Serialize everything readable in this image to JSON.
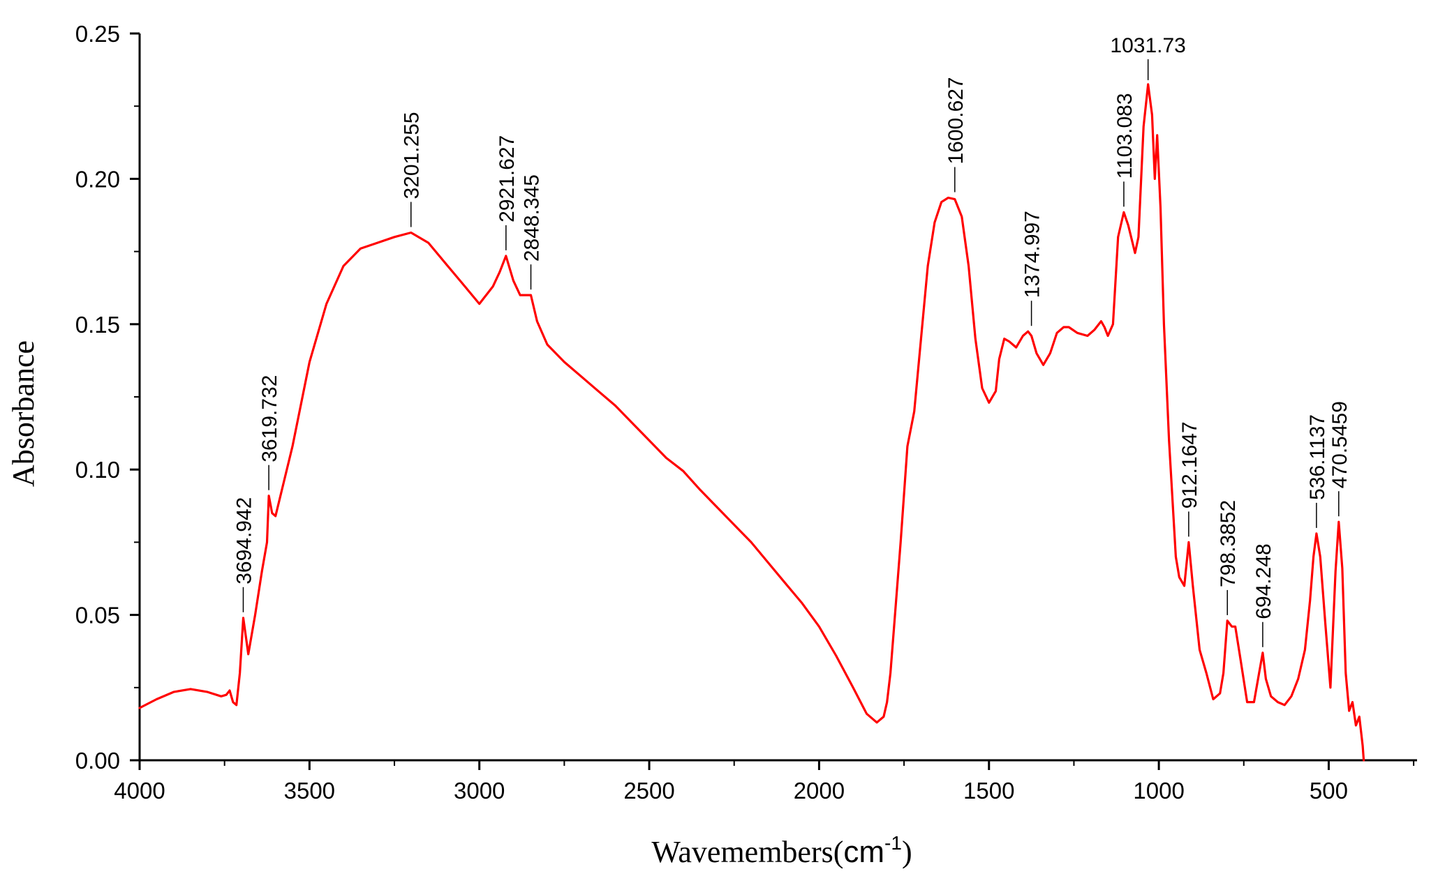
{
  "chart_data": {
    "type": "line",
    "title": "",
    "xlabel": "Wavemembers(",
    "xlabel_unit": "cm",
    "xlabel_unit_exp": "-1",
    "xlabel_close": ")",
    "ylabel": "Absorbance",
    "xlim": [
      4000,
      240
    ],
    "ylim": [
      0.0,
      0.25
    ],
    "x_ticks": [
      4000,
      3500,
      3000,
      2500,
      2000,
      1500,
      1000,
      500
    ],
    "x_tick_labels": [
      "4000",
      "3500",
      "3000",
      "2500",
      "2000",
      "1500",
      "1000",
      "500"
    ],
    "y_ticks": [
      0.0,
      0.05,
      0.1,
      0.15,
      0.2,
      0.25
    ],
    "y_tick_labels": [
      "0.00",
      "0.05",
      "0.10",
      "0.15",
      "0.20",
      "0.25"
    ],
    "grid": false,
    "line_color": "#ff0000",
    "series": [
      {
        "name": "Absorbance",
        "x": [
          4000,
          3950,
          3900,
          3850,
          3800,
          3760,
          3745,
          3735,
          3725,
          3715,
          3705,
          3694.942,
          3680,
          3660,
          3640,
          3625,
          3619.732,
          3610,
          3600,
          3550,
          3500,
          3450,
          3400,
          3350,
          3300,
          3250,
          3201.255,
          3150,
          3100,
          3050,
          3000,
          2960,
          2940,
          2921.627,
          2900,
          2880,
          2860,
          2848.345,
          2830,
          2800,
          2750,
          2700,
          2650,
          2600,
          2550,
          2500,
          2450,
          2400,
          2350,
          2300,
          2250,
          2200,
          2150,
          2100,
          2050,
          2000,
          1950,
          1900,
          1860,
          1830,
          1810,
          1800,
          1790,
          1780,
          1760,
          1740,
          1720,
          1700,
          1680,
          1660,
          1640,
          1620,
          1600.627,
          1580,
          1560,
          1540,
          1520,
          1500,
          1480,
          1470,
          1455,
          1440,
          1420,
          1400,
          1385,
          1374.997,
          1360,
          1340,
          1320,
          1300,
          1280,
          1265,
          1240,
          1210,
          1190,
          1170,
          1160,
          1150,
          1135,
          1120,
          1103.083,
          1090,
          1070,
          1060,
          1045,
          1031.73,
          1020,
          1012,
          1005,
          995,
          985,
          970,
          950,
          940,
          925,
          912.1647,
          900,
          880,
          860,
          840,
          820,
          810,
          798.3852,
          785,
          775,
          760,
          740,
          720,
          705,
          694.248,
          685,
          670,
          650,
          630,
          610,
          590,
          570,
          555,
          545,
          536.1137,
          525,
          510,
          495,
          480,
          470.5459,
          460,
          450,
          440,
          430,
          420,
          410,
          405,
          400,
          397
        ],
        "y": [
          0.018,
          0.021,
          0.0235,
          0.0245,
          0.0235,
          0.022,
          0.0225,
          0.024,
          0.02,
          0.019,
          0.03,
          0.049,
          0.0365,
          0.05,
          0.065,
          0.075,
          0.091,
          0.085,
          0.084,
          0.108,
          0.137,
          0.157,
          0.17,
          0.176,
          0.178,
          0.18,
          0.1815,
          0.178,
          0.171,
          0.164,
          0.157,
          0.163,
          0.168,
          0.1735,
          0.165,
          0.16,
          0.16,
          0.16,
          0.151,
          0.143,
          0.137,
          0.132,
          0.127,
          0.122,
          0.116,
          0.11,
          0.104,
          0.0995,
          0.093,
          0.087,
          0.081,
          0.075,
          0.068,
          0.061,
          0.054,
          0.046,
          0.036,
          0.025,
          0.016,
          0.013,
          0.015,
          0.02,
          0.03,
          0.045,
          0.075,
          0.108,
          0.12,
          0.145,
          0.17,
          0.185,
          0.192,
          0.1935,
          0.193,
          0.187,
          0.17,
          0.145,
          0.128,
          0.123,
          0.127,
          0.138,
          0.145,
          0.144,
          0.142,
          0.146,
          0.1475,
          0.146,
          0.14,
          0.136,
          0.14,
          0.147,
          0.149,
          0.149,
          0.147,
          0.146,
          0.148,
          0.151,
          0.149,
          0.146,
          0.15,
          0.18,
          0.1885,
          0.184,
          0.1745,
          0.18,
          0.218,
          0.2325,
          0.222,
          0.2,
          0.215,
          0.19,
          0.15,
          0.11,
          0.07,
          0.063,
          0.06,
          0.075,
          0.06,
          0.038,
          0.03,
          0.021,
          0.023,
          0.03,
          0.048,
          0.046,
          0.046,
          0.035,
          0.02,
          0.02,
          0.03,
          0.037,
          0.028,
          0.022,
          0.02,
          0.019,
          0.022,
          0.028,
          0.038,
          0.055,
          0.07,
          0.078,
          0.07,
          0.047,
          0.025,
          0.065,
          0.082,
          0.066,
          0.03,
          0.017,
          0.02,
          0.012,
          0.015,
          0.01,
          0.005,
          0.0
        ]
      }
    ],
    "annotations": [
      {
        "text": "3694.942",
        "x": 3694.942,
        "y": 0.049
      },
      {
        "text": "3619.732",
        "x": 3619.732,
        "y": 0.091
      },
      {
        "text": "3201.255",
        "x": 3201.255,
        "y": 0.1815
      },
      {
        "text": "2921.627",
        "x": 2921.627,
        "y": 0.1735
      },
      {
        "text": "2848.345",
        "x": 2848.345,
        "y": 0.16
      },
      {
        "text": "1600.627",
        "x": 1600.627,
        "y": 0.1935
      },
      {
        "text": "1374.997",
        "x": 1374.997,
        "y": 0.1475
      },
      {
        "text": "1103.083",
        "x": 1103.083,
        "y": 0.1885
      },
      {
        "text": "1031.73",
        "x": 1031.73,
        "y": 0.2325,
        "orientation": "horizontal"
      },
      {
        "text": "912.1647",
        "x": 912.1647,
        "y": 0.075
      },
      {
        "text": "798.3852",
        "x": 798.3852,
        "y": 0.048
      },
      {
        "text": "694.248",
        "x": 694.248,
        "y": 0.037
      },
      {
        "text": "536.1137",
        "x": 536.1137,
        "y": 0.078
      },
      {
        "text": "470.5459",
        "x": 470.5459,
        "y": 0.082
      }
    ]
  }
}
